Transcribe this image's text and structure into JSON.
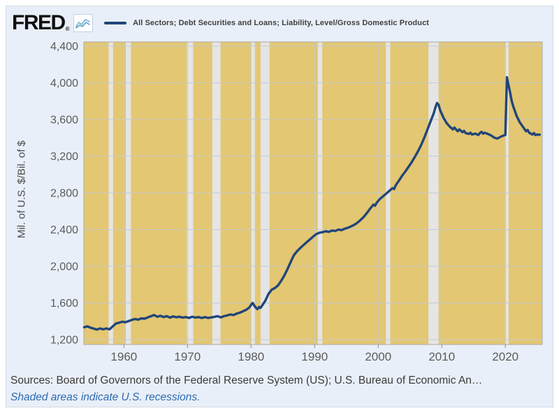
{
  "header": {
    "logo_text": "FRED",
    "logo_registered": "®",
    "chart_icon": "mini-line-chart-icon",
    "legend": {
      "swatch_color": "#21457a",
      "label": "All Sectors; Debt Securities and Loans; Liability, Level/Gross Domestic Product"
    }
  },
  "y_axis": {
    "title": "Mil. of U.S. $/Bil. of $"
  },
  "footer": {
    "sources": "Sources: Board of Governors of the Federal Reserve System (US); U.S. Bureau of Economic An…",
    "recession_note": "Shaded areas indicate U.S. recessions.",
    "link_color": "#2d6bb2"
  },
  "chart_data": {
    "type": "line",
    "title": "All Sectors; Debt Securities and Loans; Liability, Level/Gross Domestic Product",
    "xlabel": "",
    "ylabel": "Mil. of U.S. $/Bil. of $",
    "x_range": [
      1953.7,
      2025.8
    ],
    "ylim": [
      1200,
      4400
    ],
    "x_ticks": [
      1960,
      1970,
      1980,
      1990,
      2000,
      2010,
      2020
    ],
    "y_ticks": [
      1200,
      1600,
      2000,
      2400,
      2800,
      3200,
      3600,
      4000,
      4400
    ],
    "grid": true,
    "legend_position": "top",
    "recessions": [
      [
        1957.6,
        1958.3
      ],
      [
        1960.3,
        1961.1
      ],
      [
        1969.9,
        1970.9
      ],
      [
        1973.9,
        1975.2
      ],
      [
        1980.0,
        1980.6
      ],
      [
        1981.5,
        1982.9
      ],
      [
        1990.5,
        1991.2
      ],
      [
        2001.2,
        2001.9
      ],
      [
        2007.9,
        2009.5
      ],
      [
        2020.05,
        2020.5
      ]
    ],
    "colors": {
      "plot_bg": "#e3c772",
      "recession_band": "#e5e5e6",
      "gridline": "#c9c9c9",
      "plot_border": "#a9a9a9",
      "tick_mark": "#8a8a8a"
    },
    "series": [
      {
        "name": "All Sectors; Debt Securities and Loans; Liability, Level/Gross Domestic Product",
        "color": "#21457a",
        "points": [
          [
            1953.75,
            1335
          ],
          [
            1954.25,
            1345
          ],
          [
            1954.75,
            1330
          ],
          [
            1955.25,
            1320
          ],
          [
            1955.75,
            1310
          ],
          [
            1956.25,
            1322
          ],
          [
            1956.75,
            1312
          ],
          [
            1957.25,
            1322
          ],
          [
            1957.75,
            1312
          ],
          [
            1958.25,
            1345
          ],
          [
            1958.75,
            1375
          ],
          [
            1959.25,
            1385
          ],
          [
            1959.75,
            1395
          ],
          [
            1960.25,
            1390
          ],
          [
            1960.75,
            1402
          ],
          [
            1961.25,
            1415
          ],
          [
            1961.75,
            1425
          ],
          [
            1962.25,
            1418
          ],
          [
            1962.75,
            1432
          ],
          [
            1963.25,
            1428
          ],
          [
            1963.75,
            1442
          ],
          [
            1964.25,
            1455
          ],
          [
            1964.75,
            1468
          ],
          [
            1965.25,
            1450
          ],
          [
            1965.75,
            1460
          ],
          [
            1966.25,
            1446
          ],
          [
            1966.75,
            1456
          ],
          [
            1967.25,
            1440
          ],
          [
            1967.75,
            1454
          ],
          [
            1968.25,
            1444
          ],
          [
            1968.75,
            1450
          ],
          [
            1969.25,
            1440
          ],
          [
            1969.75,
            1446
          ],
          [
            1970.25,
            1436
          ],
          [
            1970.75,
            1450
          ],
          [
            1971.25,
            1440
          ],
          [
            1971.75,
            1446
          ],
          [
            1972.25,
            1436
          ],
          [
            1972.75,
            1446
          ],
          [
            1973.25,
            1436
          ],
          [
            1973.75,
            1442
          ],
          [
            1974.25,
            1448
          ],
          [
            1974.75,
            1456
          ],
          [
            1975.25,
            1442
          ],
          [
            1975.75,
            1456
          ],
          [
            1976.25,
            1464
          ],
          [
            1976.75,
            1474
          ],
          [
            1977.25,
            1468
          ],
          [
            1977.75,
            1484
          ],
          [
            1978.25,
            1494
          ],
          [
            1978.75,
            1510
          ],
          [
            1979.25,
            1526
          ],
          [
            1979.75,
            1552
          ],
          [
            1980.0,
            1580
          ],
          [
            1980.25,
            1600
          ],
          [
            1980.5,
            1572
          ],
          [
            1980.75,
            1548
          ],
          [
            1981.0,
            1532
          ],
          [
            1981.25,
            1556
          ],
          [
            1981.5,
            1546
          ],
          [
            1981.75,
            1572
          ],
          [
            1982.25,
            1625
          ],
          [
            1982.75,
            1700
          ],
          [
            1983.25,
            1745
          ],
          [
            1983.75,
            1762
          ],
          [
            1984.25,
            1792
          ],
          [
            1984.75,
            1842
          ],
          [
            1985.25,
            1902
          ],
          [
            1985.75,
            1972
          ],
          [
            1986.25,
            2050
          ],
          [
            1986.75,
            2122
          ],
          [
            1987.25,
            2165
          ],
          [
            1987.75,
            2200
          ],
          [
            1988.25,
            2232
          ],
          [
            1988.75,
            2262
          ],
          [
            1989.25,
            2292
          ],
          [
            1989.75,
            2322
          ],
          [
            1990.25,
            2350
          ],
          [
            1990.75,
            2365
          ],
          [
            1991.25,
            2372
          ],
          [
            1991.75,
            2382
          ],
          [
            1992.25,
            2375
          ],
          [
            1992.75,
            2390
          ],
          [
            1993.25,
            2385
          ],
          [
            1993.75,
            2400
          ],
          [
            1994.25,
            2394
          ],
          [
            1994.75,
            2410
          ],
          [
            1995.25,
            2420
          ],
          [
            1995.75,
            2436
          ],
          [
            1996.25,
            2452
          ],
          [
            1996.75,
            2476
          ],
          [
            1997.25,
            2506
          ],
          [
            1997.75,
            2540
          ],
          [
            1998.25,
            2582
          ],
          [
            1998.75,
            2630
          ],
          [
            1999.25,
            2672
          ],
          [
            1999.5,
            2660
          ],
          [
            1999.75,
            2692
          ],
          [
            2000.25,
            2732
          ],
          [
            2000.75,
            2762
          ],
          [
            2001.25,
            2792
          ],
          [
            2001.75,
            2822
          ],
          [
            2002.25,
            2852
          ],
          [
            2002.5,
            2842
          ],
          [
            2002.75,
            2882
          ],
          [
            2003.25,
            2932
          ],
          [
            2003.75,
            2986
          ],
          [
            2004.25,
            3032
          ],
          [
            2004.75,
            3082
          ],
          [
            2005.25,
            3132
          ],
          [
            2005.75,
            3192
          ],
          [
            2006.25,
            3252
          ],
          [
            2006.75,
            3322
          ],
          [
            2007.25,
            3402
          ],
          [
            2007.75,
            3492
          ],
          [
            2008.25,
            3582
          ],
          [
            2008.75,
            3672
          ],
          [
            2009.0,
            3732
          ],
          [
            2009.25,
            3780
          ],
          [
            2009.5,
            3760
          ],
          [
            2009.75,
            3700
          ],
          [
            2010.25,
            3622
          ],
          [
            2010.75,
            3562
          ],
          [
            2011.25,
            3522
          ],
          [
            2011.75,
            3492
          ],
          [
            2012.0,
            3512
          ],
          [
            2012.25,
            3492
          ],
          [
            2012.5,
            3472
          ],
          [
            2012.75,
            3492
          ],
          [
            2013.25,
            3462
          ],
          [
            2013.5,
            3476
          ],
          [
            2013.75,
            3452
          ],
          [
            2014.25,
            3442
          ],
          [
            2014.5,
            3456
          ],
          [
            2014.75,
            3436
          ],
          [
            2015.25,
            3446
          ],
          [
            2015.75,
            3432
          ],
          [
            2016.0,
            3452
          ],
          [
            2016.25,
            3466
          ],
          [
            2016.5,
            3446
          ],
          [
            2016.75,
            3456
          ],
          [
            2017.25,
            3442
          ],
          [
            2017.75,
            3426
          ],
          [
            2018.25,
            3402
          ],
          [
            2018.75,
            3392
          ],
          [
            2019.25,
            3412
          ],
          [
            2019.75,
            3426
          ],
          [
            2020.0,
            3432
          ],
          [
            2020.25,
            4060
          ],
          [
            2020.5,
            3972
          ],
          [
            2020.75,
            3892
          ],
          [
            2021.0,
            3802
          ],
          [
            2021.25,
            3742
          ],
          [
            2021.5,
            3692
          ],
          [
            2021.75,
            3642
          ],
          [
            2022.25,
            3572
          ],
          [
            2022.75,
            3522
          ],
          [
            2023.25,
            3472
          ],
          [
            2023.5,
            3486
          ],
          [
            2023.75,
            3456
          ],
          [
            2024.25,
            3436
          ],
          [
            2024.5,
            3452
          ],
          [
            2024.75,
            3430
          ],
          [
            2025.0,
            3436
          ],
          [
            2025.4,
            3434
          ]
        ]
      }
    ]
  }
}
